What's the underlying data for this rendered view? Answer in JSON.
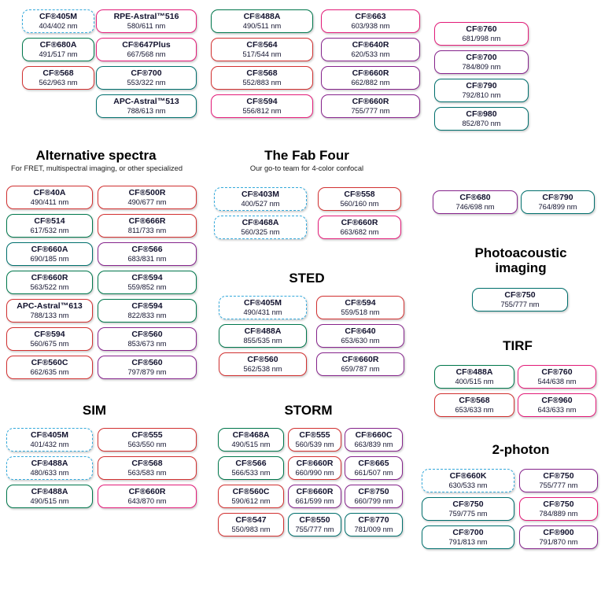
{
  "palette": {
    "blue": "#35aadc",
    "green": "#00774c",
    "red": "#d23131",
    "pink": "#e31c79",
    "purple": "#86248c",
    "teal": "#006f6d"
  },
  "sections": {
    "top": {
      "columns": [
        [
          {
            "name": "CF®405M",
            "nm": "404/402 nm",
            "color": "blue",
            "dashed": true
          },
          {
            "name": "CF®680A",
            "nm": "491/517 nm",
            "color": "green"
          },
          {
            "name": "CF®568",
            "nm": "562/963 nm",
            "color": "red"
          }
        ],
        [
          {
            "name": "RPE-Astral™516",
            "nm": "580/611 nm",
            "color": "pink"
          },
          {
            "name": "CF®647Plus",
            "nm": "667/568 nm",
            "color": "pink"
          },
          {
            "name": "CF®700",
            "nm": "553/322 nm",
            "color": "teal"
          },
          {
            "name": "APC-Astral™513",
            "nm": "788/613 nm",
            "color": "teal"
          }
        ],
        [
          {
            "name": "CF®488A",
            "nm": "490/511 nm",
            "color": "green"
          },
          {
            "name": "CF®564",
            "nm": "517/544 nm",
            "color": "red"
          },
          {
            "name": "CF®568",
            "nm": "552/883 nm",
            "color": "red"
          },
          {
            "name": "CF®594",
            "nm": "556/812 nm",
            "color": "pink"
          }
        ],
        [
          {
            "name": "CF®663",
            "nm": "603/938 nm",
            "color": "pink"
          },
          {
            "name": "CF®640R",
            "nm": "620/533 nm",
            "color": "purple"
          },
          {
            "name": "CF®660R",
            "nm": "662/882 nm",
            "color": "purple"
          },
          {
            "name": "CF®660R",
            "nm": "755/777 nm",
            "color": "purple"
          }
        ],
        [
          {
            "name": "CF®760",
            "nm": "681/998 nm",
            "color": "pink"
          },
          {
            "name": "CF®700",
            "nm": "784/809 nm",
            "color": "purple"
          },
          {
            "name": "CF®790",
            "nm": "792/810 nm",
            "color": "teal"
          },
          {
            "name": "CF®980",
            "nm": "852/870 nm",
            "color": "teal"
          }
        ]
      ]
    },
    "alternative": {
      "title": "Alternative spectra",
      "subtitle": "For FRET, multispectral imaging, or other specialized",
      "columns": [
        [
          {
            "name": "CF®40A",
            "nm": "490/411 nm",
            "color": "red"
          },
          {
            "name": "CF®514",
            "nm": "617/532 nm",
            "color": "green"
          },
          {
            "name": "CF®660A",
            "nm": "690/185 nm",
            "color": "teal"
          },
          {
            "name": "CF®660R",
            "nm": "563/522 nm",
            "color": "green"
          },
          {
            "name": "APC-Astral™613",
            "nm": "788/133 nm",
            "color": "red"
          },
          {
            "name": "CF®594",
            "nm": "560/675 nm",
            "color": "red"
          },
          {
            "name": "CF®560C",
            "nm": "662/635 nm",
            "color": "red"
          }
        ],
        [
          {
            "name": "CF®500R",
            "nm": "490/677 nm",
            "color": "red"
          },
          {
            "name": "CF®666R",
            "nm": "811/733 nm",
            "color": "red"
          },
          {
            "name": "CF®566",
            "nm": "683/831 nm",
            "color": "purple"
          },
          {
            "name": "CF®594",
            "nm": "559/852 nm",
            "color": "green"
          },
          {
            "name": "CF®594",
            "nm": "822/833 nm",
            "color": "green"
          },
          {
            "name": "CF®560",
            "nm": "853/673 nm",
            "color": "purple"
          },
          {
            "name": "CF®560",
            "nm": "797/879 nm",
            "color": "purple"
          }
        ]
      ]
    },
    "fabfour": {
      "title": "The Fab Four",
      "subtitle": "Our go-to team for 4-color confocal",
      "columns": [
        [
          {
            "name": "CF®403M",
            "nm": "400/527 nm",
            "color": "blue",
            "dashed": true
          },
          {
            "name": "CF®468A",
            "nm": "560/325 nm",
            "color": "blue",
            "dashed": true
          }
        ],
        [
          {
            "name": "CF®558",
            "nm": "560/160 nm",
            "color": "red"
          },
          {
            "name": "CF®660R",
            "nm": "663/682 nm",
            "color": "pink"
          }
        ]
      ]
    },
    "nearir": {
      "columns": [
        [
          {
            "name": "CF®680",
            "nm": "746/698 nm",
            "color": "purple"
          }
        ],
        [
          {
            "name": "CF®790",
            "nm": "764/899 nm",
            "color": "teal"
          }
        ]
      ]
    },
    "sted": {
      "title": "STED",
      "columns": [
        [
          {
            "name": "CF®405M",
            "nm": "490/431 nm",
            "color": "blue",
            "dashed": true
          },
          {
            "name": "CF®488A",
            "nm": "855/535 nm",
            "color": "green"
          },
          {
            "name": "CF®560",
            "nm": "562/538 nm",
            "color": "red"
          }
        ],
        [
          {
            "name": "CF®594",
            "nm": "559/518 nm",
            "color": "red"
          },
          {
            "name": "CF®640",
            "nm": "653/630 nm",
            "color": "purple"
          },
          {
            "name": "CF®660R",
            "nm": "659/787 nm",
            "color": "purple"
          }
        ]
      ]
    },
    "photoacoustic": {
      "title": "Photoacoustic imaging",
      "columns": [
        [
          {
            "name": "CF®750",
            "nm": "755/777 nm",
            "color": "teal"
          }
        ]
      ]
    },
    "tirf": {
      "title": "TIRF",
      "columns": [
        [
          {
            "name": "CF®488A",
            "nm": "400/515 nm",
            "color": "green"
          },
          {
            "name": "CF®568",
            "nm": "653/633 nm",
            "color": "red"
          }
        ],
        [
          {
            "name": "CF®760",
            "nm": "544/638 nm",
            "color": "pink"
          },
          {
            "name": "CF®960",
            "nm": "643/633 nm",
            "color": "pink"
          }
        ]
      ]
    },
    "sim": {
      "title": "SIM",
      "columns": [
        [
          {
            "name": "CF®405M",
            "nm": "401/432 nm",
            "color": "blue",
            "dashed": true
          },
          {
            "name": "CF®488A",
            "nm": "480/633 nm",
            "color": "blue",
            "dashed": true
          },
          {
            "name": "CF®488A",
            "nm": "490/515 nm",
            "color": "green"
          }
        ],
        [
          {
            "name": "CF®555",
            "nm": "563/550 nm",
            "color": "red"
          },
          {
            "name": "CF®568",
            "nm": "563/583 nm",
            "color": "red"
          },
          {
            "name": "CF®660R",
            "nm": "643/870 nm",
            "color": "pink"
          }
        ]
      ]
    },
    "storm": {
      "title": "STORM",
      "columns": [
        [
          {
            "name": "CF®468A",
            "nm": "490/515 nm",
            "color": "green"
          },
          {
            "name": "CF®566",
            "nm": "566/533 nm",
            "color": "green"
          },
          {
            "name": "CF®560C",
            "nm": "590/612 nm",
            "color": "red"
          },
          {
            "name": "CF®547",
            "nm": "550/983 nm",
            "color": "red"
          }
        ],
        [
          {
            "name": "CF®555",
            "nm": "560/539 nm",
            "color": "red"
          },
          {
            "name": "CF®660R",
            "nm": "660/990 nm",
            "color": "red"
          },
          {
            "name": "CF®660R",
            "nm": "661/599 nm",
            "color": "purple"
          },
          {
            "name": "CF®550",
            "nm": "755/777 nm",
            "color": "teal"
          }
        ],
        [
          {
            "name": "CF®660C",
            "nm": "663/839 nm",
            "color": "purple"
          },
          {
            "name": "CF®665",
            "nm": "661/507 nm",
            "color": "purple"
          },
          {
            "name": "CF®750",
            "nm": "660/799 nm",
            "color": "purple"
          },
          {
            "name": "CF®770",
            "nm": "781/009 nm",
            "color": "teal"
          }
        ]
      ]
    },
    "twophoton": {
      "title": "2-photon",
      "columns": [
        [
          {
            "name": "CF®660K",
            "nm": "630/533 nm",
            "color": "blue",
            "dashed": true
          },
          {
            "name": "CF®750",
            "nm": "759/775 nm",
            "color": "teal"
          },
          {
            "name": "CF®700",
            "nm": "791/813 nm",
            "color": "teal"
          }
        ],
        [
          {
            "name": "CF®750",
            "nm": "755/777 nm",
            "color": "purple"
          },
          {
            "name": "CF®750",
            "nm": "784/889 nm",
            "color": "pink"
          },
          {
            "name": "CF®900",
            "nm": "791/870 nm",
            "color": "purple"
          }
        ]
      ]
    }
  }
}
